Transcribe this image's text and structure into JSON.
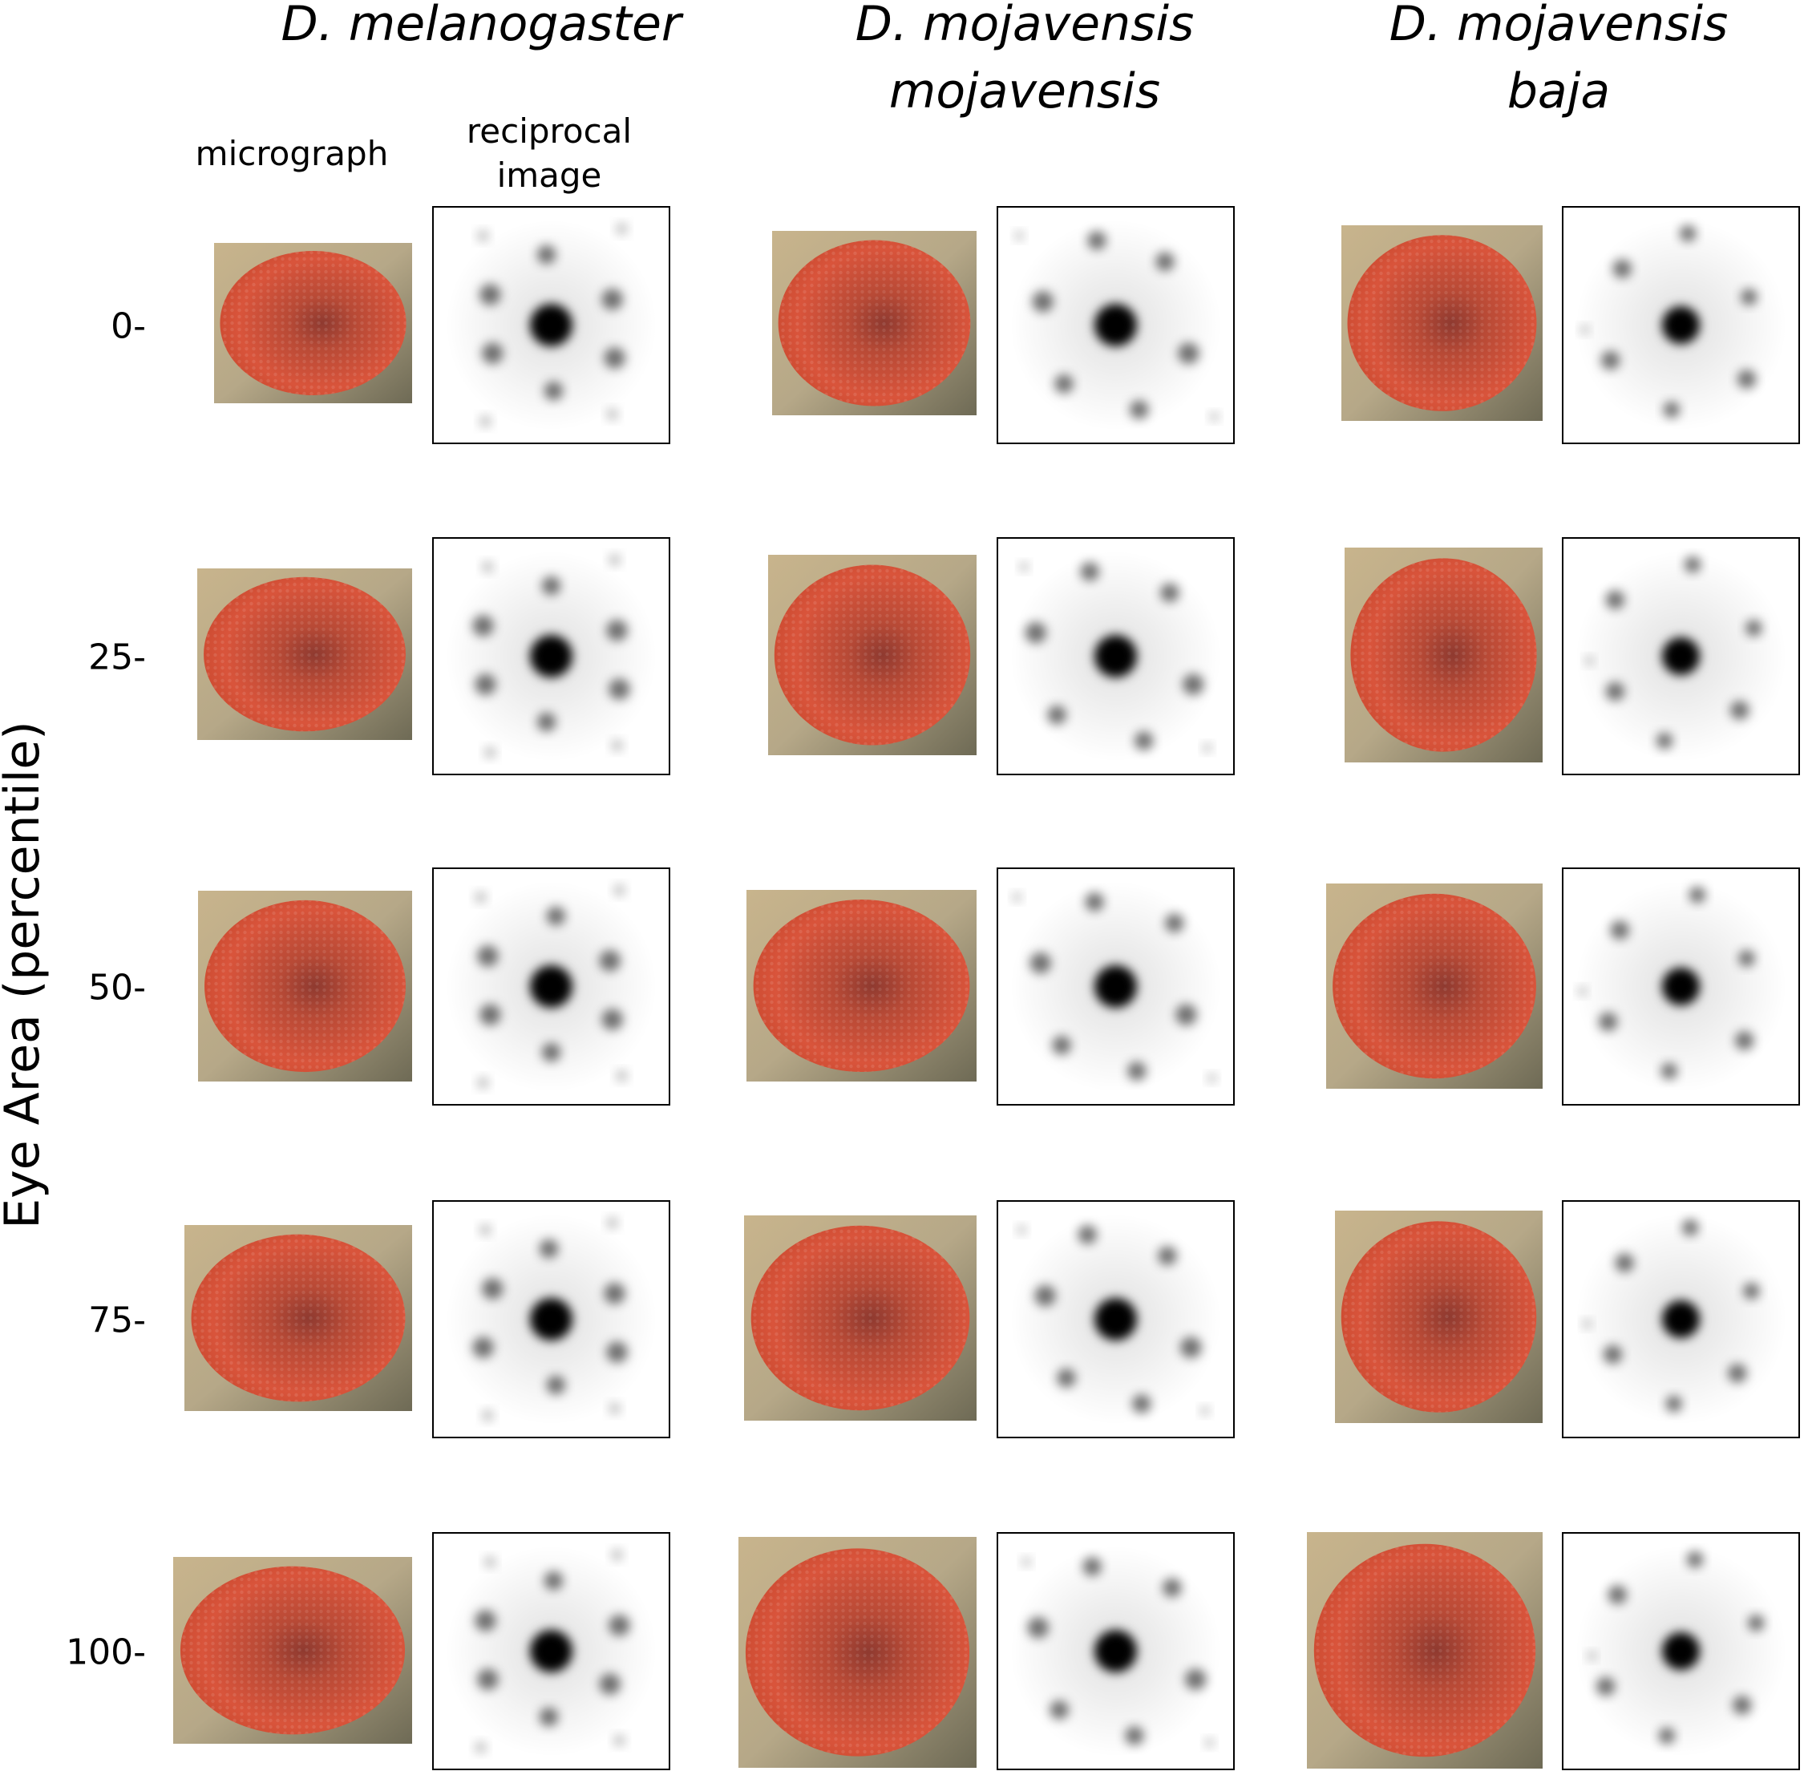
{
  "figure": {
    "y_axis_label": "Eye Area (percentile)",
    "column_sublabels": {
      "micrograph": "micrograph",
      "reciprocal": "reciprocal\nimage"
    },
    "species": [
      {
        "name_line1": "D. melanogaster",
        "name_line2": ""
      },
      {
        "name_line1": "D. mojavensis",
        "name_line2": "mojavensis"
      },
      {
        "name_line1": "D. mojavensis",
        "name_line2": "baja"
      }
    ],
    "rows": [
      {
        "label": "0-"
      },
      {
        "label": "25-"
      },
      {
        "label": "50-"
      },
      {
        "label": "75-"
      },
      {
        "label": "100-"
      }
    ]
  },
  "colors": {
    "eye": "#d9543b",
    "eye_dark": "#8f3a30",
    "cuticle": "#b6a888",
    "background": "#ffffff",
    "spot": "#000000"
  }
}
